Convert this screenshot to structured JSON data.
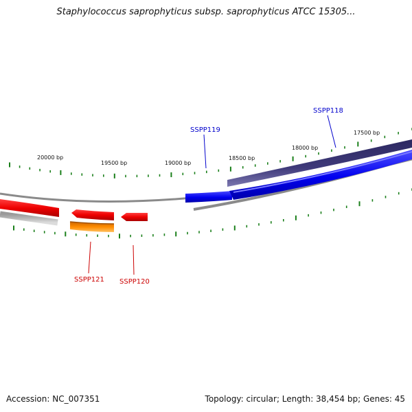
{
  "title": "Staphylococcus saprophyticus subsp. saprophyticus ATCC 15305...",
  "footer": {
    "accession": "Accession: NC_007351",
    "summary": "Topology: circular; Length: 38,454 bp; Genes: 45"
  },
  "ticks": [
    {
      "label": "20000 bp"
    },
    {
      "label": "19500 bp"
    },
    {
      "label": "19000 bp"
    },
    {
      "label": "18500 bp"
    },
    {
      "label": "18000 bp"
    },
    {
      "label": "17500 bp"
    }
  ],
  "genes": [
    {
      "name": "SSPP118",
      "strand": "forward",
      "color": "#0000cc"
    },
    {
      "name": "SSPP119",
      "strand": "forward",
      "color": "#0000cc"
    },
    {
      "name": "SSPP120",
      "strand": "reverse",
      "color": "#cc0000"
    },
    {
      "name": "SSPP121",
      "strand": "reverse",
      "color": "#cc0000"
    }
  ],
  "colors": {
    "forward_gene": "#0000ee",
    "reverse_gene": "#ee0000",
    "forward_cds": "#3f3a7a",
    "reverse_cds": "#ff8c00",
    "backbone": "#8a8a8a",
    "ticks": "#1a7f1a"
  }
}
